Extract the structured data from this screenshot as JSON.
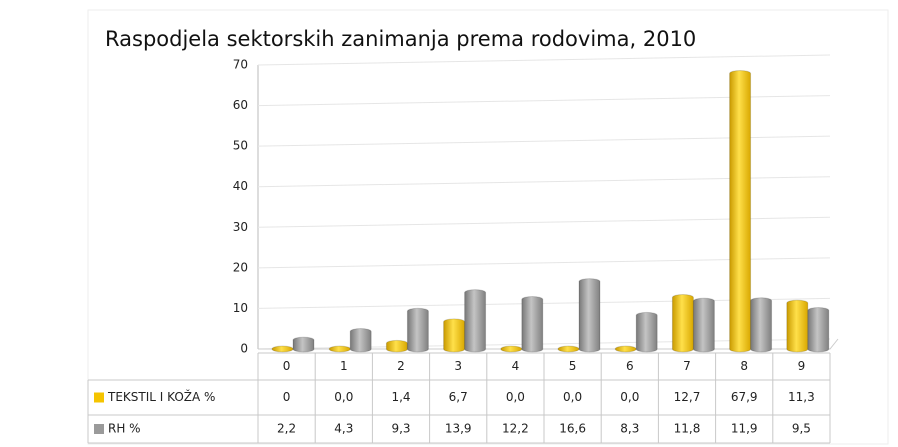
{
  "chart_data": {
    "type": "bar",
    "title": "Raspodjela sektorskih zanimanja prema rodovima, 2010",
    "categories": [
      "0",
      "1",
      "2",
      "3",
      "4",
      "5",
      "6",
      "7",
      "8",
      "9"
    ],
    "series": [
      {
        "name": "TEKSTIL I KOŽA %",
        "color": "#f5c400",
        "values": [
          0,
          0.0,
          1.4,
          6.7,
          0.0,
          0.0,
          0.0,
          12.7,
          67.9,
          11.3
        ],
        "value_labels": [
          "0",
          "0,0",
          "1,4",
          "6,7",
          "0,0",
          "0,0",
          "0,0",
          "12,7",
          "67,9",
          "11,3"
        ]
      },
      {
        "name": "RH %",
        "color": "#9a9a9a",
        "values": [
          2.2,
          4.3,
          9.3,
          13.9,
          12.2,
          16.6,
          8.3,
          11.8,
          11.9,
          9.5
        ],
        "value_labels": [
          "2,2",
          "4,3",
          "9,3",
          "13,9",
          "12,2",
          "16,6",
          "8,3",
          "11,8",
          "11,9",
          "9,5"
        ]
      }
    ],
    "ylim": [
      0,
      70
    ],
    "yticks": [
      0,
      10,
      20,
      30,
      40,
      50,
      60,
      70
    ],
    "grid": true
  }
}
